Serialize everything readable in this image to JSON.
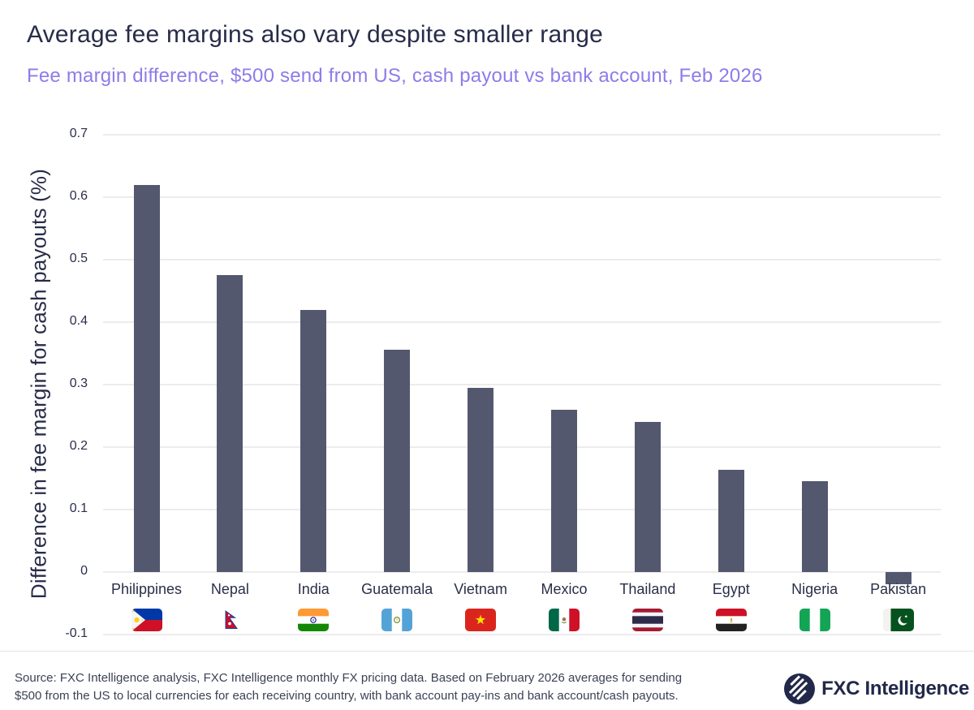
{
  "header": {
    "title": "Average fee margins also vary despite smaller range",
    "subtitle": "Fee margin difference, $500 send from US, cash payout vs bank account, Feb 2026"
  },
  "chart_data": {
    "type": "bar",
    "title": "Average fee margins also vary despite smaller range",
    "subtitle": "Fee margin difference, $500 send from US, cash payout vs bank account, Feb 2026",
    "categories": [
      "Philippines",
      "Nepal",
      "India",
      "Guatemala",
      "Vietnam",
      "Mexico",
      "Thailand",
      "Egypt",
      "Nigeria",
      "Pakistan"
    ],
    "values": [
      0.62,
      0.475,
      0.42,
      0.356,
      0.295,
      0.26,
      0.24,
      0.163,
      0.146,
      -0.02
    ],
    "flags": [
      "philippines-flag",
      "nepal-flag",
      "india-flag",
      "guatemala-flag",
      "vietnam-flag",
      "mexico-flag",
      "thailand-flag",
      "egypt-flag",
      "nigeria-flag",
      "pakistan-flag"
    ],
    "xlabel": "",
    "ylabel": "Difference in fee margin for cash payouts (%)",
    "ylim": [
      -0.1,
      0.7
    ],
    "ytick_labels": [
      "0.7",
      "0.6",
      "0.5",
      "0.4",
      "0.3",
      "0.2",
      "0.1",
      "0",
      "-0.1"
    ],
    "yticks": [
      0.7,
      0.6,
      0.5,
      0.4,
      0.3,
      0.2,
      0.1,
      0,
      -0.1
    ],
    "grid": true,
    "legend": false,
    "bar_color": "#54586e"
  },
  "footer": {
    "source_line1": "Source: FXC Intelligence analysis, FXC Intelligence monthly FX pricing data. Based on February 2026 averages for sending",
    "source_line2": "$500 from the US to local currencies for each receiving country, with bank account pay-ins and bank account/cash payouts.",
    "logo_text": "FXC Intelligence"
  },
  "colors": {
    "title_text": "#272c49",
    "subtitle_text": "#8d7ce9",
    "bar": "#54586e",
    "gridline": "#ececec",
    "axis_text": "#2a2f4a",
    "source_text": "#3c4156",
    "logo": "#222849"
  }
}
